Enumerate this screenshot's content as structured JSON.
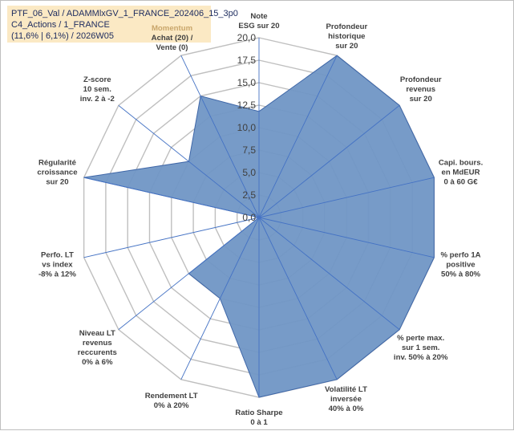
{
  "info": {
    "line1": "PTF_06_Val / ADAMMlxGV_1_FRANCE_202406_15_3p0",
    "line2": "C4_Actions / 1_FRANCE",
    "line3": "(11,6% | 6,1%) / 2026W05"
  },
  "colors": {
    "fill": "#7096c5",
    "stroke": "#3f67a8",
    "grid": "#bfbfbf",
    "spoke": "#4472c4",
    "highlight_label": "#c9a66b"
  },
  "chart_data": {
    "type": "radar",
    "rmin": 0,
    "rmax": 20,
    "tick_step": 2.5,
    "tick_labels": [
      "0,0",
      "2,5",
      "5,0",
      "7,5",
      "10,0",
      "12,5",
      "15,0",
      "17,5",
      "20,0"
    ],
    "categories": [
      {
        "lines": [
          "Note",
          "ESG sur 20"
        ]
      },
      {
        "lines": [
          "Profondeur",
          "historique",
          "sur 20"
        ]
      },
      {
        "lines": [
          "Profondeur",
          "revenus",
          "sur 20"
        ]
      },
      {
        "lines": [
          "Capi. bours.",
          "en MdEUR",
          "0 à 60 G€"
        ]
      },
      {
        "lines": [
          "% perfo 1A",
          "positive",
          "50% à 80%"
        ]
      },
      {
        "lines": [
          "% perte max.",
          "sur 1 sem.",
          "inv. 50% à 20%"
        ]
      },
      {
        "lines": [
          "Volatilité LT",
          "inversée",
          "40% à 0%"
        ]
      },
      {
        "lines": [
          "Ratio Sharpe",
          "0 à 1"
        ]
      },
      {
        "lines": [
          "Rendement LT",
          "0% à 20%"
        ]
      },
      {
        "lines": [
          "Niveau LT",
          "revenus",
          "reccurents",
          "0% à 6%"
        ]
      },
      {
        "lines": [
          "Perfo. LT",
          "vs index",
          "-8% à 12%"
        ]
      },
      {
        "lines": [
          "Régularité",
          "croissance",
          "sur 20"
        ]
      },
      {
        "lines": [
          "Z-score",
          "10 sem.",
          "inv. 2 à -2"
        ]
      },
      {
        "lines": [
          "Momentum",
          "Achat (20) /",
          "Vente (0)"
        ]
      }
    ],
    "series": [
      {
        "values": [
          11.8,
          20,
          20,
          20,
          20,
          20,
          20,
          20,
          10,
          10,
          0,
          20,
          10,
          15
        ]
      }
    ],
    "grid": true,
    "legend": "none"
  }
}
